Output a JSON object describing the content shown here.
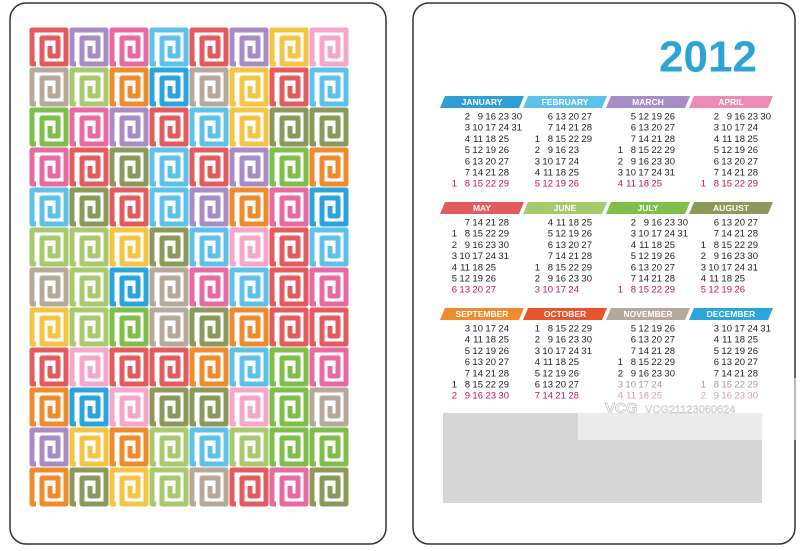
{
  "year": "2012",
  "months": [
    {
      "name": "JANUARY",
      "color": "#2f9fd3",
      "rows": [
        [
          null,
          2,
          9,
          16,
          23,
          30
        ],
        [
          null,
          3,
          10,
          17,
          24,
          31
        ],
        [
          null,
          4,
          11,
          18,
          25
        ],
        [
          null,
          5,
          12,
          19,
          26
        ],
        [
          null,
          6,
          13,
          20,
          27
        ],
        [
          null,
          7,
          14,
          21,
          28
        ],
        [
          1,
          8,
          15,
          22,
          29
        ]
      ]
    },
    {
      "name": "FEBRUARY",
      "color": "#5cc2ea",
      "rows": [
        [
          null,
          6,
          13,
          20,
          27
        ],
        [
          null,
          7,
          14,
          21,
          28
        ],
        [
          1,
          8,
          15,
          22,
          29
        ],
        [
          2,
          9,
          16,
          23
        ],
        [
          3,
          10,
          17,
          24
        ],
        [
          4,
          11,
          18,
          25
        ],
        [
          5,
          12,
          19,
          26
        ]
      ]
    },
    {
      "name": "MARCH",
      "color": "#a88cc6",
      "rows": [
        [
          null,
          5,
          12,
          19,
          26
        ],
        [
          null,
          6,
          13,
          20,
          27
        ],
        [
          null,
          7,
          14,
          21,
          28
        ],
        [
          1,
          8,
          15,
          22,
          29
        ],
        [
          2,
          9,
          16,
          23,
          30
        ],
        [
          3,
          10,
          17,
          24,
          31
        ],
        [
          4,
          11,
          18,
          25
        ]
      ]
    },
    {
      "name": "APRIL",
      "color": "#ea8cb4",
      "rows": [
        [
          null,
          2,
          9,
          16,
          23,
          30
        ],
        [
          null,
          3,
          10,
          17,
          24
        ],
        [
          null,
          4,
          11,
          18,
          25
        ],
        [
          null,
          5,
          12,
          19,
          26
        ],
        [
          null,
          6,
          13,
          20,
          27
        ],
        [
          null,
          7,
          14,
          21,
          28
        ],
        [
          1,
          8,
          15,
          22,
          29
        ]
      ]
    },
    {
      "name": "MAY",
      "color": "#e35b5d",
      "rows": [
        [
          null,
          7,
          14,
          21,
          28
        ],
        [
          1,
          8,
          15,
          22,
          29
        ],
        [
          2,
          9,
          16,
          23,
          30
        ],
        [
          3,
          10,
          17,
          24,
          31
        ],
        [
          4,
          11,
          18,
          25
        ],
        [
          5,
          12,
          19,
          26
        ],
        [
          6,
          13,
          20,
          27
        ]
      ]
    },
    {
      "name": "JUNE",
      "color": "#a8c96c",
      "rows": [
        [
          null,
          4,
          11,
          18,
          25
        ],
        [
          null,
          5,
          12,
          19,
          26
        ],
        [
          null,
          6,
          13,
          20,
          27
        ],
        [
          null,
          7,
          14,
          21,
          28
        ],
        [
          1,
          8,
          15,
          22,
          29
        ],
        [
          2,
          9,
          16,
          23,
          30
        ],
        [
          3,
          10,
          17,
          24
        ]
      ]
    },
    {
      "name": "JULY",
      "color": "#7dbf48",
      "rows": [
        [
          null,
          2,
          9,
          16,
          23,
          30
        ],
        [
          null,
          3,
          10,
          17,
          24,
          31
        ],
        [
          null,
          4,
          11,
          18,
          25
        ],
        [
          null,
          5,
          12,
          19,
          26
        ],
        [
          null,
          6,
          13,
          20,
          27
        ],
        [
          null,
          7,
          14,
          21,
          28
        ],
        [
          1,
          8,
          15,
          22,
          29
        ]
      ]
    },
    {
      "name": "AUGUST",
      "color": "#8b9a5a",
      "rows": [
        [
          null,
          6,
          13,
          20,
          27
        ],
        [
          null,
          7,
          14,
          21,
          28
        ],
        [
          1,
          8,
          15,
          22,
          29
        ],
        [
          2,
          9,
          16,
          23,
          30
        ],
        [
          3,
          10,
          17,
          24,
          31
        ],
        [
          4,
          11,
          18,
          25
        ],
        [
          5,
          12,
          19,
          26
        ]
      ]
    },
    {
      "name": "SEPTEMBER",
      "color": "#f08b2d",
      "rows": [
        [
          null,
          3,
          10,
          17,
          24
        ],
        [
          null,
          4,
          11,
          18,
          25
        ],
        [
          null,
          5,
          12,
          19,
          26
        ],
        [
          null,
          6,
          13,
          20,
          27
        ],
        [
          null,
          7,
          14,
          21,
          28
        ],
        [
          1,
          8,
          15,
          22,
          29
        ],
        [
          2,
          9,
          16,
          23,
          30
        ]
      ]
    },
    {
      "name": "OCTOBER",
      "color": "#e8542e",
      "rows": [
        [
          1,
          8,
          15,
          22,
          29
        ],
        [
          2,
          9,
          16,
          23,
          30
        ],
        [
          3,
          10,
          17,
          24,
          31
        ],
        [
          4,
          11,
          18,
          25
        ],
        [
          5,
          12,
          19,
          26
        ],
        [
          6,
          13,
          20,
          27
        ],
        [
          7,
          14,
          21,
          28
        ]
      ]
    },
    {
      "name": "NOVEMBER",
      "color": "#b7a999",
      "rows": [
        [
          null,
          5,
          12,
          19,
          26
        ],
        [
          null,
          6,
          13,
          20,
          27
        ],
        [
          null,
          7,
          14,
          21,
          28
        ],
        [
          1,
          8,
          15,
          22,
          29
        ],
        [
          2,
          9,
          16,
          23,
          30
        ],
        [
          3,
          10,
          17,
          24
        ],
        [
          4,
          11,
          18,
          25
        ]
      ]
    },
    {
      "name": "DECEMBER",
      "color": "#2aa4dd",
      "rows": [
        [
          null,
          3,
          10,
          17,
          24,
          31
        ],
        [
          null,
          4,
          11,
          18,
          25
        ],
        [
          null,
          5,
          12,
          19,
          26
        ],
        [
          null,
          6,
          13,
          20,
          27
        ],
        [
          null,
          7,
          14,
          21,
          28
        ],
        [
          1,
          8,
          15,
          22,
          29
        ],
        [
          2,
          9,
          16,
          23,
          30
        ]
      ]
    }
  ],
  "watermark": {
    "logo": "VCG",
    "id": "VCG21123060624"
  }
}
